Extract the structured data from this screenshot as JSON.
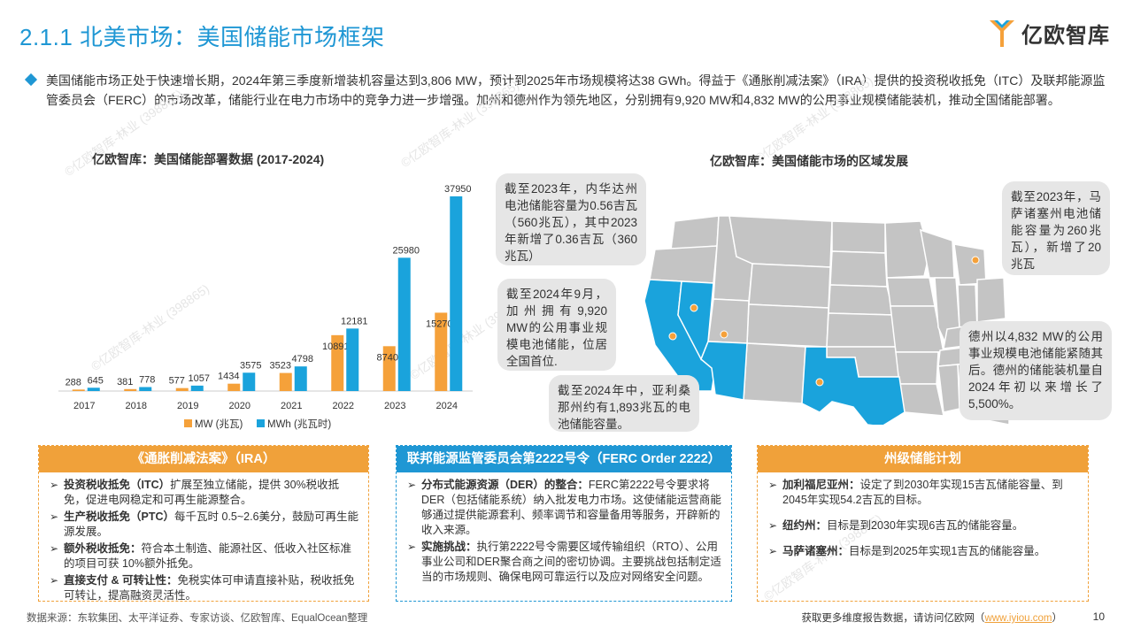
{
  "header": {
    "title": "2.1.1 北美市场：美国储能市场框架",
    "logo_text": "亿欧智库"
  },
  "intro": "美国储能市场正处于快速增长期，2024年第三季度新增装机容量达到3,806 MW，预计到2025年市场规模将达38 GWh。得益于《通胀削减法案》（IRA）提供的投资税收抵免（ITC）及联邦能源监管委员会（FERC）的市场改革，储能行业在电力市场中的竞争力进一步增强。加州和德州作为领先地区，分别拥有9,920 MW和4,832 MW的公用事业规模储能装机，推动全国储能部署。",
  "watermark": "©亿欧智库-林业 (398865)",
  "left_chart_title": "亿欧智库：美国储能部署数据 (2017-2024)",
  "right_chart_title": "亿欧智库：美国储能市场的区域发展",
  "chart_data": {
    "type": "bar",
    "categories": [
      "2017",
      "2018",
      "2019",
      "2020",
      "2021",
      "2022",
      "2023",
      "2024"
    ],
    "series": [
      {
        "name": "MW (兆瓦)",
        "color": "#f5a13a",
        "values": [
          288,
          381,
          577,
          1434,
          3523,
          10891,
          8740,
          15270
        ]
      },
      {
        "name": "MWh (兆瓦时)",
        "color": "#1aa3dc",
        "values": [
          645,
          778,
          1057,
          3575,
          4798,
          12181,
          25980,
          37950
        ]
      }
    ],
    "ylim": [
      0,
      40000
    ],
    "grid": false,
    "legend": "bottom"
  },
  "map": {
    "highlight_color": "#1aa3dc",
    "dot_color": "#f5a13a",
    "bubbles": {
      "nevada": "截至2023年，内华达州电池储能容量为0.56吉瓦（560兆瓦），其中2023年新增了0.36吉瓦（360兆瓦）",
      "california": "截至2024年9月，加州拥有9,920 MW的公用事业规模电池储能，位居全国首位.",
      "arizona": "截至2024年中，亚利桑那州约有1,893兆瓦的电池储能容量。",
      "massachusetts": "截至2023年，马萨诸塞州电池储能容量为260兆瓦），新增了20兆瓦",
      "texas": "德州以4,832 MW的公用事业规模电池储能紧随其后。德州的储能装机量自2024年初以来增长了5,500%。"
    }
  },
  "policies": {
    "ira": {
      "title": "《通胀削减法案》（IRA）",
      "items": [
        {
          "bold": "投资税收抵免（ITC）",
          "text": "扩展至独立储能，提供 30%税收抵免，促进电网稳定和可再生能源整合。"
        },
        {
          "bold": "生产税收抵免（PTC）",
          "text": "每千瓦时 0.5~2.6美分，鼓励可再生能源发展。"
        },
        {
          "bold": "额外税收抵免：",
          "text": "符合本土制造、能源社区、低收入社区标准的项目可获 10%额外抵免。"
        },
        {
          "bold": "直接支付 & 可转让性：",
          "text": "免税实体可申请直接补贴，税收抵免可转让，提高融资灵活性。"
        }
      ]
    },
    "ferc": {
      "title": "联邦能源监管委员会第2222号令（FERC Order 2222）",
      "items": [
        {
          "bold": "分布式能源资源（DER）的整合：",
          "text": "FERC第2222号令要求将DER（包括储能系统）纳入批发电力市场。这使储能运营商能够通过提供能源套利、频率调节和容量备用等服务，开辟新的收入来源。"
        },
        {
          "bold": "实施挑战：",
          "text": "执行第2222号令需要区域传输组织（RTO）、公用事业公司和DER聚合商之间的密切协调。主要挑战包括制定适当的市场规则、确保电网可靠运行以及应对网络安全问题。"
        }
      ]
    },
    "state": {
      "title": "州级储能计划",
      "items": [
        {
          "bold": "加利福尼亚州：",
          "text": "设定了到2030年实现15吉瓦储能容量、到2045年实现54.2吉瓦的目标。"
        },
        {
          "bold": "纽约州：",
          "text": "目标是到2030年实现6吉瓦的储能容量。"
        },
        {
          "bold": "马萨诸塞州：",
          "text": "目标是到2025年实现1吉瓦的储能容量。"
        }
      ]
    }
  },
  "footer": {
    "source": "数据来源：东软集团、太平洋证券、专家访谈、亿欧智库、EqualOcean整理",
    "more": "获取更多维度报告数据，请访问亿欧网（",
    "link": "www.iyiou.com",
    "close": "）",
    "page": "10"
  }
}
